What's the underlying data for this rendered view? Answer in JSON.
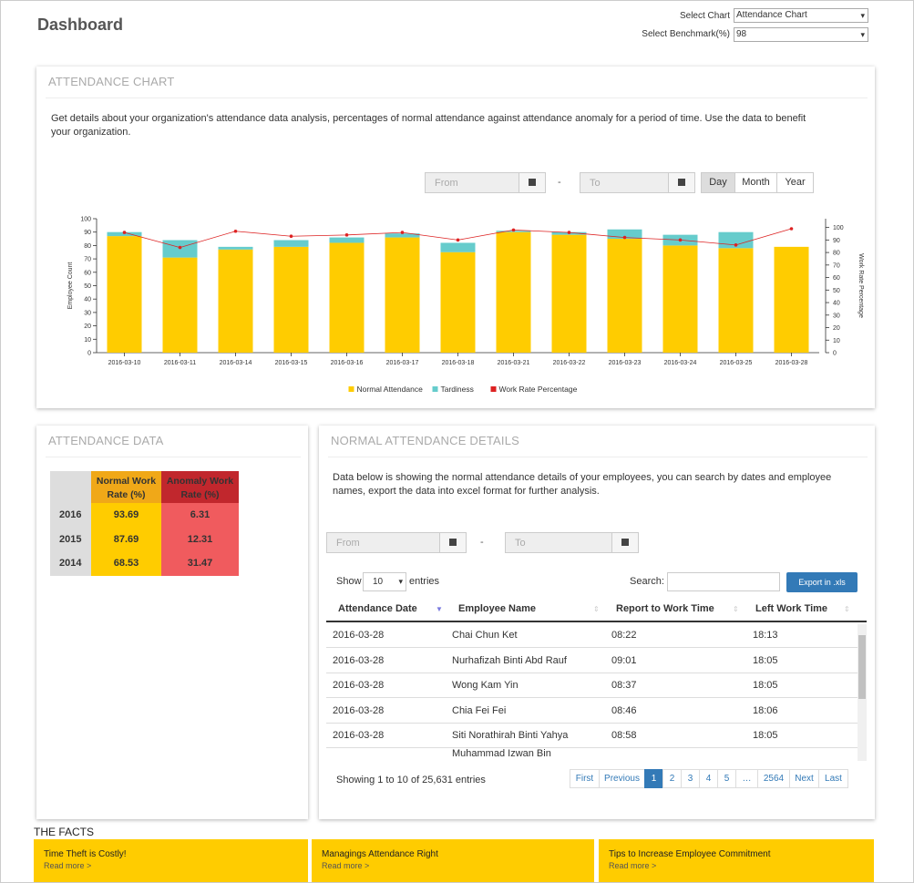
{
  "header": {
    "title": "Dashboard",
    "select_chart_label": "Select Chart",
    "select_chart_value": "Attendance Chart",
    "select_benchmark_label": "Select Benchmark(%)",
    "select_benchmark_value": "98"
  },
  "attendance_panel": {
    "title": "ATTENDANCE CHART",
    "description": "Get details about your organization's attendance data analysis, percentages of normal attendance against attendance anomaly for a period of time. Use the data to benefit your organization.",
    "from": "From",
    "separator": "-",
    "to": "To",
    "periods": [
      "Day",
      "Month",
      "Year"
    ],
    "active_period": "Day"
  },
  "chart_data": {
    "type": "bar",
    "stacked": true,
    "categories": [
      "2016-03-10",
      "2016-03-11",
      "2016-03-14",
      "2016-03-15",
      "2016-03-16",
      "2016-03-17",
      "2016-03-18",
      "2016-03-21",
      "2016-03-22",
      "2016-03-23",
      "2016-03-24",
      "2016-03-25",
      "2016-03-28"
    ],
    "series": [
      {
        "name": "Normal Attendance",
        "color": "#ffcc00",
        "values": [
          87,
          71,
          77,
          79,
          82,
          86,
          75,
          90,
          88,
          85,
          80,
          78,
          79
        ]
      },
      {
        "name": "Tardiness",
        "color": "#66cccc",
        "values": [
          3,
          13,
          2,
          5,
          4,
          3,
          7,
          1,
          2,
          7,
          8,
          12,
          0
        ]
      },
      {
        "name": "Work Rate Percentage",
        "color": "#dd2222",
        "type": "line",
        "axis": "y2",
        "values": [
          96,
          84,
          97,
          93,
          94,
          96,
          90,
          98,
          96,
          92,
          90,
          86,
          99
        ]
      }
    ],
    "y_label": "Employee Count",
    "y2_label": "Work Rate Percentage",
    "ylim": [
      0,
      100
    ],
    "yticks": [
      0,
      10,
      20,
      30,
      40,
      50,
      60,
      70,
      80,
      90,
      100
    ],
    "y2lim": [
      0,
      107
    ],
    "y2ticks": [
      0,
      10,
      20,
      30,
      40,
      50,
      60,
      70,
      80,
      90,
      100
    ],
    "legend": "bottom"
  },
  "attendance_data": {
    "title": "ATTENDANCE DATA",
    "columns": [
      "Normal Work Rate (%)",
      "Anomaly Work Rate (%)"
    ],
    "rows": [
      {
        "year": 2016,
        "normal": 93.69,
        "anomaly": 6.31
      },
      {
        "year": 2015,
        "normal": 87.69,
        "anomaly": 12.31
      },
      {
        "year": 2014,
        "normal": 68.53,
        "anomaly": 31.47
      }
    ]
  },
  "details": {
    "title": "NORMAL ATTENDANCE DETAILS",
    "description": "Data below is showing the normal attendance details of your employees, you can search by dates and employee names, export the data into excel format for further analysis.",
    "from": "From",
    "separator": "-",
    "to": "To",
    "show": "Show",
    "page_size": 10,
    "entries": "entries",
    "search": "Search:",
    "export": "Export in .xls",
    "columns": [
      "Attendance Date",
      "Employee Name",
      "Report to Work Time",
      "Left Work Time"
    ],
    "rows": [
      {
        "date": "2016-03-28",
        "name": "Chai Chun Ket",
        "in": "08:22",
        "out": "18:13"
      },
      {
        "date": "2016-03-28",
        "name": "Nurhafizah Binti Abd Rauf",
        "in": "09:01",
        "out": "18:05"
      },
      {
        "date": "2016-03-28",
        "name": "Wong Kam Yin",
        "in": "08:37",
        "out": "18:05"
      },
      {
        "date": "2016-03-28",
        "name": "Chia Fei Fei",
        "in": "08:46",
        "out": "18:06"
      },
      {
        "date": "2016-03-28",
        "name": "Siti Norathirah Binti Yahya",
        "in": "08:58",
        "out": "18:05"
      },
      {
        "name": "Muhammad Izwan Bin"
      }
    ],
    "info": "Showing 1 to 10 of 25,631 entries",
    "pages": [
      "First",
      "Previous",
      1,
      2,
      3,
      4,
      5,
      "…",
      2564,
      "Next",
      "Last"
    ],
    "current_page": 1
  },
  "facts": {
    "title": "THE FACTS",
    "cards": [
      {
        "title": "Time Theft is Costly!",
        "link": "Read more >"
      },
      {
        "title": "Managings Attendance Right",
        "link": "Read more >"
      },
      {
        "title": "Tips to Increase Employee Commitment",
        "link": "Read more >"
      }
    ]
  }
}
